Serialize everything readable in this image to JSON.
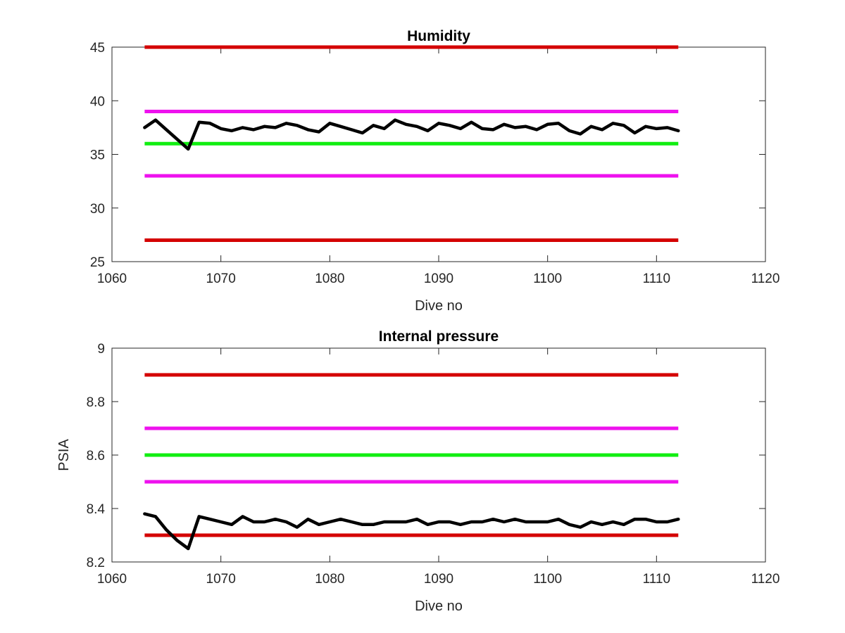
{
  "chart_data": [
    {
      "type": "line",
      "title": "Humidity",
      "xlabel": "Dive no",
      "ylabel": "",
      "xlim": [
        1060,
        1120
      ],
      "ylim": [
        25,
        45
      ],
      "xticks": [
        "1060",
        "1070",
        "1080",
        "1090",
        "1100",
        "1110",
        "1120"
      ],
      "yticks": [
        "25",
        "30",
        "35",
        "40",
        "45"
      ],
      "grid": false,
      "limit_lines": [
        {
          "value": 45,
          "color": "#d40000",
          "x": [
            1063,
            1112
          ]
        },
        {
          "value": 39,
          "color": "#ee11ee",
          "x": [
            1063,
            1112
          ]
        },
        {
          "value": 36,
          "color": "#11ee11",
          "x": [
            1063,
            1112
          ]
        },
        {
          "value": 33,
          "color": "#ee11ee",
          "x": [
            1063,
            1112
          ]
        },
        {
          "value": 27,
          "color": "#d40000",
          "x": [
            1063,
            1112
          ]
        }
      ],
      "series": [
        {
          "color": "#000000",
          "x": [
            1063,
            1064,
            1065,
            1066,
            1067,
            1068,
            1069,
            1070,
            1071,
            1072,
            1073,
            1074,
            1075,
            1076,
            1077,
            1078,
            1079,
            1080,
            1081,
            1082,
            1083,
            1084,
            1085,
            1086,
            1087,
            1088,
            1089,
            1090,
            1091,
            1092,
            1093,
            1094,
            1095,
            1096,
            1097,
            1098,
            1099,
            1100,
            1101,
            1102,
            1103,
            1104,
            1105,
            1106,
            1107,
            1108,
            1109,
            1110,
            1111,
            1112
          ],
          "values": [
            37.5,
            38.2,
            37.3,
            36.4,
            35.5,
            38.0,
            37.9,
            37.4,
            37.2,
            37.5,
            37.3,
            37.6,
            37.5,
            37.9,
            37.7,
            37.3,
            37.1,
            37.9,
            37.6,
            37.3,
            37.0,
            37.7,
            37.4,
            38.2,
            37.8,
            37.6,
            37.2,
            37.9,
            37.7,
            37.4,
            38.0,
            37.4,
            37.3,
            37.8,
            37.5,
            37.6,
            37.3,
            37.8,
            37.9,
            37.2,
            36.9,
            37.6,
            37.3,
            37.9,
            37.7,
            37.0,
            37.6,
            37.4,
            37.5,
            37.2
          ]
        }
      ]
    },
    {
      "type": "line",
      "title": "Internal pressure",
      "xlabel": "Dive no",
      "ylabel": "PSIA",
      "xlim": [
        1060,
        1120
      ],
      "ylim": [
        8.2,
        9.0
      ],
      "xticks": [
        "1060",
        "1070",
        "1080",
        "1090",
        "1100",
        "1110",
        "1120"
      ],
      "yticks": [
        "8.2",
        "8.4",
        "8.6",
        "8.8",
        "9"
      ],
      "grid": false,
      "limit_lines": [
        {
          "value": 8.9,
          "color": "#d40000",
          "x": [
            1063,
            1112
          ]
        },
        {
          "value": 8.7,
          "color": "#ee11ee",
          "x": [
            1063,
            1112
          ]
        },
        {
          "value": 8.6,
          "color": "#11ee11",
          "x": [
            1063,
            1112
          ]
        },
        {
          "value": 8.5,
          "color": "#ee11ee",
          "x": [
            1063,
            1112
          ]
        },
        {
          "value": 8.3,
          "color": "#d40000",
          "x": [
            1063,
            1112
          ]
        }
      ],
      "series": [
        {
          "color": "#000000",
          "x": [
            1063,
            1064,
            1065,
            1066,
            1067,
            1068,
            1069,
            1070,
            1071,
            1072,
            1073,
            1074,
            1075,
            1076,
            1077,
            1078,
            1079,
            1080,
            1081,
            1082,
            1083,
            1084,
            1085,
            1086,
            1087,
            1088,
            1089,
            1090,
            1091,
            1092,
            1093,
            1094,
            1095,
            1096,
            1097,
            1098,
            1099,
            1100,
            1101,
            1102,
            1103,
            1104,
            1105,
            1106,
            1107,
            1108,
            1109,
            1110,
            1111,
            1112
          ],
          "values": [
            8.38,
            8.37,
            8.32,
            8.28,
            8.25,
            8.37,
            8.36,
            8.35,
            8.34,
            8.37,
            8.35,
            8.35,
            8.36,
            8.35,
            8.33,
            8.36,
            8.34,
            8.35,
            8.36,
            8.35,
            8.34,
            8.34,
            8.35,
            8.35,
            8.35,
            8.36,
            8.34,
            8.35,
            8.35,
            8.34,
            8.35,
            8.35,
            8.36,
            8.35,
            8.36,
            8.35,
            8.35,
            8.35,
            8.36,
            8.34,
            8.33,
            8.35,
            8.34,
            8.35,
            8.34,
            8.36,
            8.36,
            8.35,
            8.35,
            8.36
          ]
        }
      ]
    }
  ]
}
